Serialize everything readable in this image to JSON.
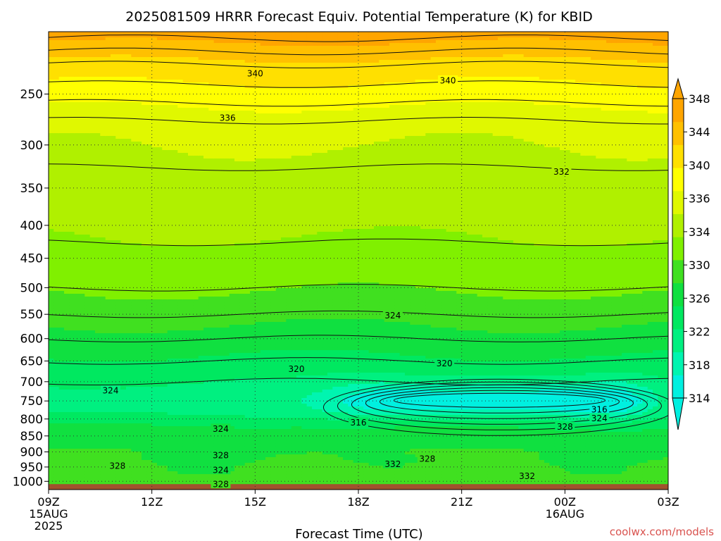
{
  "chart_data": {
    "type": "heatmap",
    "title": "2025081509 HRRR Forecast Equiv. Potential Temperature (K) for KBID",
    "xlabel": "Forecast Time (UTC)",
    "ylabel": "",
    "credit": "coolwx.com/models",
    "x_range_hours": [
      9,
      27
    ],
    "y_range_hpa": [
      1030,
      200
    ],
    "y_scale": "log",
    "grid": true,
    "x_ticks": [
      {
        "hour": 9,
        "label": "09Z",
        "sub": [
          "15AUG",
          "2025"
        ]
      },
      {
        "hour": 12,
        "label": "12Z",
        "sub": []
      },
      {
        "hour": 15,
        "label": "15Z",
        "sub": []
      },
      {
        "hour": 18,
        "label": "18Z",
        "sub": []
      },
      {
        "hour": 21,
        "label": "21Z",
        "sub": []
      },
      {
        "hour": 24,
        "label": "00Z",
        "sub": [
          "16AUG"
        ]
      },
      {
        "hour": 27,
        "label": "03Z",
        "sub": []
      }
    ],
    "y_ticks": [
      {
        "p": 250,
        "label": "250"
      },
      {
        "p": 300,
        "label": "300"
      },
      {
        "p": 350,
        "label": "350"
      },
      {
        "p": 400,
        "label": "400"
      },
      {
        "p": 450,
        "label": "450"
      },
      {
        "p": 500,
        "label": "500"
      },
      {
        "p": 550,
        "label": "550"
      },
      {
        "p": 600,
        "label": "600"
      },
      {
        "p": 650,
        "label": "650"
      },
      {
        "p": 700,
        "label": "700"
      },
      {
        "p": 750,
        "label": "750"
      },
      {
        "p": 800,
        "label": "800"
      },
      {
        "p": 850,
        "label": "850"
      },
      {
        "p": 900,
        "label": "900"
      },
      {
        "p": 950,
        "label": "950"
      },
      {
        "p": 1000,
        "label": "1000"
      }
    ],
    "colorbar": {
      "min": 314,
      "max": 348,
      "step": 2,
      "tick_labels": [
        "314",
        "318",
        "322",
        "326",
        "330",
        "334",
        "336",
        "340",
        "344",
        "348"
      ],
      "tick_values": [
        314,
        318,
        322,
        326,
        330,
        334,
        336,
        340,
        344,
        348
      ],
      "colors": [
        "#00f0e0",
        "#00f5b0",
        "#00f080",
        "#00e860",
        "#10e040",
        "#40e020",
        "#80f000",
        "#b0f000",
        "#e0f800",
        "#ffff00",
        "#ffe000",
        "#ffc000",
        "#ffa500"
      ]
    },
    "surface_color": "#a0522d",
    "profile_hpa": [
      1030,
      1000,
      975,
      950,
      925,
      900,
      875,
      850,
      825,
      800,
      775,
      750,
      725,
      700,
      675,
      650,
      625,
      600,
      575,
      550,
      525,
      500,
      475,
      450,
      425,
      400,
      375,
      350,
      325,
      300,
      275,
      250,
      225,
      200
    ],
    "profile_theta_e": [
      329,
      329,
      328,
      328,
      327,
      327,
      326,
      326,
      325,
      323,
      321,
      320,
      321,
      322,
      323,
      324,
      325,
      326,
      327,
      328,
      329,
      330,
      331,
      331,
      332,
      333,
      333,
      333,
      334,
      335,
      336,
      339,
      342,
      347
    ],
    "cold_core": {
      "hour_start": 16.2,
      "hour_end": 26.8,
      "p_top": 700,
      "p_bottom": 800,
      "min_value": 314
    },
    "contour_labels": [
      {
        "hour": 15.0,
        "p": 232,
        "text": "340"
      },
      {
        "hour": 20.6,
        "p": 238,
        "text": "340"
      },
      {
        "hour": 14.2,
        "p": 272,
        "text": "336"
      },
      {
        "hour": 23.9,
        "p": 330,
        "text": "332"
      },
      {
        "hour": 19.0,
        "p": 552,
        "text": "324"
      },
      {
        "hour": 16.2,
        "p": 668,
        "text": "320"
      },
      {
        "hour": 20.5,
        "p": 655,
        "text": "320"
      },
      {
        "hour": 10.8,
        "p": 722,
        "text": "324"
      },
      {
        "hour": 25.0,
        "p": 773,
        "text": "316"
      },
      {
        "hour": 25.0,
        "p": 797,
        "text": "324"
      },
      {
        "hour": 18.0,
        "p": 810,
        "text": "316"
      },
      {
        "hour": 14.0,
        "p": 828,
        "text": "324"
      },
      {
        "hour": 24.0,
        "p": 822,
        "text": "328"
      },
      {
        "hour": 14.0,
        "p": 910,
        "text": "328"
      },
      {
        "hour": 20.0,
        "p": 922,
        "text": "328"
      },
      {
        "hour": 19.0,
        "p": 940,
        "text": "332"
      },
      {
        "hour": 11.0,
        "p": 945,
        "text": "328"
      },
      {
        "hour": 14.0,
        "p": 960,
        "text": "324"
      },
      {
        "hour": 22.9,
        "p": 980,
        "text": "332"
      },
      {
        "hour": 14.0,
        "p": 1010,
        "text": "328"
      }
    ]
  }
}
